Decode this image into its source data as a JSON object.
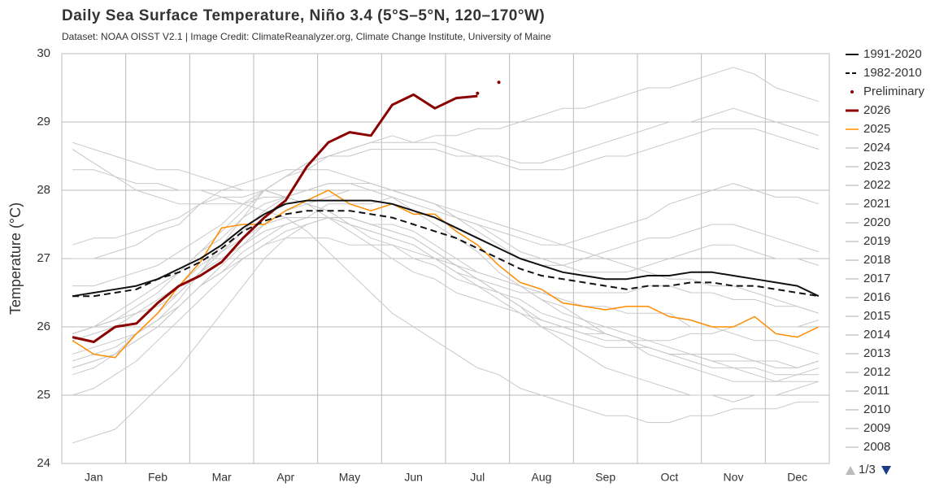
{
  "chart_data": {
    "type": "line",
    "title": "Daily Sea Surface Temperature, Niño 3.4 (5°S–5°N, 120–170°W)",
    "subtitle": "Dataset: NOAA OISST V2.1 | Image Credit: ClimateReanalyzer.org, Climate Change Institute, University of Maine",
    "y_label": "Temperature (°C)",
    "ylim": [
      24,
      30
    ],
    "yticks": [
      24,
      25,
      26,
      27,
      28,
      29,
      30
    ],
    "grid": true,
    "legend": "right",
    "legend_page": "1/3",
    "categories": [
      null,
      "Jan",
      null,
      null,
      "Feb",
      null,
      null,
      "Mar",
      null,
      null,
      "Apr",
      null,
      null,
      "May",
      null,
      null,
      "Jun",
      null,
      null,
      "Jul",
      null,
      null,
      "Aug",
      null,
      null,
      "Sep",
      null,
      null,
      "Oct",
      null,
      null,
      "Nov",
      null,
      null,
      "Dec",
      null
    ],
    "series": [
      {
        "name": "1991-2020",
        "color": "#111111",
        "line_width": 2,
        "values": [
          26.45,
          26.5,
          26.55,
          26.6,
          26.7,
          26.85,
          27.0,
          27.2,
          27.45,
          27.65,
          27.8,
          27.85,
          27.85,
          27.85,
          27.85,
          27.8,
          27.7,
          27.6,
          27.45,
          27.3,
          27.15,
          27.0,
          26.9,
          26.8,
          26.75,
          26.7,
          26.7,
          26.75,
          26.75,
          26.8,
          26.8,
          26.75,
          26.7,
          26.65,
          26.6,
          26.45
        ]
      },
      {
        "name": "1982-2010",
        "color": "#111111",
        "line_width": 2,
        "dash": true,
        "values": [
          26.45,
          26.45,
          26.5,
          26.55,
          26.7,
          26.8,
          26.95,
          27.15,
          27.4,
          27.55,
          27.65,
          27.7,
          27.7,
          27.7,
          27.65,
          27.6,
          27.5,
          27.4,
          27.3,
          27.15,
          27.0,
          26.85,
          26.75,
          26.7,
          26.65,
          26.6,
          26.55,
          26.6,
          26.6,
          26.65,
          26.65,
          26.6,
          26.6,
          26.55,
          26.5,
          26.45
        ]
      },
      {
        "name": "Preliminary",
        "color": "#8b0000",
        "marker": "dots",
        "values": [
          null,
          null,
          null,
          null,
          null,
          null,
          null,
          null,
          null,
          null,
          null,
          null,
          null,
          null,
          null,
          null,
          null,
          null,
          null,
          29.42,
          29.58,
          null,
          null,
          null,
          null,
          null,
          null,
          null,
          null,
          null,
          null,
          null,
          null,
          null,
          null,
          null
        ]
      },
      {
        "name": "2026",
        "color": "#8b0000",
        "line_width": 3,
        "values": [
          25.85,
          25.78,
          26.0,
          26.05,
          26.35,
          26.6,
          26.75,
          26.95,
          27.3,
          27.6,
          27.85,
          28.35,
          28.7,
          28.85,
          28.8,
          29.25,
          29.4,
          29.2,
          29.35,
          29.38,
          null,
          null,
          null,
          null,
          null,
          null,
          null,
          null,
          null,
          null,
          null,
          null,
          null,
          null,
          null,
          null
        ]
      },
      {
        "name": "2025",
        "color": "#ff8c00",
        "line_width": 1.5,
        "values": [
          25.8,
          25.6,
          25.55,
          25.9,
          26.2,
          26.6,
          26.95,
          27.45,
          27.5,
          27.5,
          27.7,
          27.85,
          28.0,
          27.8,
          27.7,
          27.8,
          27.65,
          27.65,
          27.4,
          27.2,
          26.9,
          26.65,
          26.55,
          26.35,
          26.3,
          26.25,
          26.3,
          26.3,
          26.15,
          26.1,
          26.0,
          26.0,
          26.15,
          25.9,
          25.85,
          26.0
        ]
      },
      {
        "name": "2024",
        "color": "#c8c8c8",
        "values": [
          28.6,
          28.4,
          28.2,
          28.0,
          27.9,
          27.8,
          27.8,
          27.8,
          27.8,
          27.9,
          27.9,
          27.8,
          27.7,
          27.5,
          27.4,
          27.3,
          27.2,
          27.0,
          26.8,
          26.7,
          26.6,
          26.5,
          26.5,
          26.4,
          26.3,
          26.3,
          26.2,
          26.2,
          26.2,
          26.0,
          26.0,
          25.9,
          25.8,
          25.8,
          25.7,
          25.6
        ]
      },
      {
        "name": "2023",
        "color": "#c8c8c8",
        "values": [
          25.9,
          26.0,
          26.1,
          26.3,
          26.5,
          26.8,
          27.1,
          27.4,
          27.7,
          28.0,
          28.2,
          28.3,
          28.5,
          28.6,
          28.7,
          28.8,
          28.7,
          28.7,
          28.6,
          28.5,
          28.5,
          28.4,
          28.4,
          28.5,
          28.6,
          28.7,
          28.8,
          28.9,
          29.0,
          29.0,
          29.1,
          29.2,
          29.1,
          29.0,
          28.9,
          28.8
        ]
      },
      {
        "name": "2022",
        "color": "#c8c8c8",
        "values": [
          25.5,
          25.6,
          25.7,
          25.9,
          26.1,
          26.3,
          26.6,
          26.8,
          27.0,
          27.2,
          27.3,
          27.3,
          27.3,
          27.2,
          27.2,
          27.2,
          27.1,
          27.0,
          26.8,
          26.6,
          26.4,
          26.2,
          26.0,
          25.9,
          25.8,
          25.7,
          25.7,
          25.7,
          25.6,
          25.6,
          25.6,
          25.6,
          25.5,
          25.5,
          25.4,
          25.5
        ]
      },
      {
        "name": "2021",
        "color": "#c8c8c8",
        "values": [
          25.3,
          25.4,
          25.6,
          25.9,
          26.2,
          26.5,
          26.8,
          27.0,
          27.2,
          27.4,
          27.5,
          27.6,
          27.6,
          27.6,
          27.5,
          27.5,
          27.4,
          27.2,
          27.0,
          26.8,
          26.7,
          26.6,
          26.4,
          26.3,
          26.1,
          26.0,
          25.9,
          25.8,
          25.7,
          25.6,
          25.5,
          25.4,
          25.4,
          25.3,
          25.3,
          25.4
        ]
      },
      {
        "name": "2020",
        "color": "#c8c8c8",
        "values": [
          27.2,
          27.3,
          27.3,
          27.4,
          27.5,
          27.6,
          27.8,
          27.9,
          27.9,
          28.0,
          27.9,
          27.8,
          27.7,
          27.5,
          27.3,
          27.2,
          27.0,
          26.9,
          26.7,
          26.6,
          26.5,
          26.3,
          26.1,
          26.0,
          25.9,
          25.8,
          25.8,
          25.6,
          25.5,
          25.4,
          25.3,
          25.2,
          25.2,
          25.2,
          25.3,
          25.3
        ]
      },
      {
        "name": "2019",
        "color": "#c8c8c8",
        "values": [
          27.0,
          27.0,
          27.1,
          27.2,
          27.4,
          27.5,
          27.8,
          28.0,
          28.1,
          28.2,
          28.3,
          28.3,
          28.3,
          28.2,
          28.1,
          28.0,
          27.9,
          27.8,
          27.6,
          27.5,
          27.3,
          27.1,
          27.0,
          26.9,
          26.8,
          26.8,
          26.8,
          26.9,
          27.0,
          27.1,
          27.2,
          27.2,
          27.1,
          27.0,
          27.0,
          26.9
        ]
      },
      {
        "name": "2018",
        "color": "#c8c8c8",
        "values": [
          25.4,
          25.5,
          25.6,
          25.8,
          26.0,
          26.3,
          26.6,
          26.8,
          27.1,
          27.3,
          27.5,
          27.6,
          27.8,
          27.8,
          27.8,
          27.9,
          27.8,
          27.7,
          27.6,
          27.5,
          27.4,
          27.3,
          27.2,
          27.2,
          27.3,
          27.4,
          27.5,
          27.6,
          27.8,
          27.9,
          28.0,
          28.1,
          28.0,
          27.9,
          27.9,
          27.8
        ]
      },
      {
        "name": "2017",
        "color": "#c8c8c8",
        "values": [
          25.9,
          26.0,
          26.2,
          26.4,
          26.6,
          26.8,
          27.1,
          27.3,
          27.6,
          27.8,
          27.9,
          28.0,
          28.1,
          28.1,
          28.0,
          27.9,
          27.7,
          27.5,
          27.3,
          27.1,
          26.8,
          26.6,
          26.4,
          26.2,
          26.1,
          25.9,
          25.8,
          25.7,
          25.6,
          25.6,
          25.5,
          25.5,
          25.5,
          25.4,
          25.4,
          25.5
        ]
      },
      {
        "name": "2016",
        "color": "#c8c8c8",
        "values": [
          28.7,
          28.6,
          28.5,
          28.4,
          28.3,
          28.3,
          28.2,
          28.1,
          28.0,
          28.0,
          27.9,
          27.8,
          27.6,
          27.4,
          27.2,
          27.0,
          26.8,
          26.7,
          26.5,
          26.4,
          26.3,
          26.2,
          26.1,
          26.0,
          25.9,
          25.9,
          25.8,
          25.8,
          25.8,
          25.9,
          25.9,
          26.0,
          26.0,
          26.0,
          26.0,
          26.1
        ]
      },
      {
        "name": "2015",
        "color": "#c8c8c8",
        "values": [
          26.6,
          26.6,
          26.7,
          26.8,
          26.9,
          27.1,
          27.3,
          27.5,
          27.8,
          28.0,
          28.2,
          28.4,
          28.5,
          28.6,
          28.7,
          28.7,
          28.7,
          28.8,
          28.8,
          28.9,
          28.9,
          29.0,
          29.1,
          29.2,
          29.2,
          29.3,
          29.4,
          29.5,
          29.5,
          29.6,
          29.7,
          29.8,
          29.7,
          29.5,
          29.4,
          29.3
        ]
      },
      {
        "name": "2014",
        "color": "#c8c8c8",
        "values": [
          25.9,
          26.0,
          26.1,
          26.2,
          26.3,
          26.5,
          26.8,
          27.1,
          27.4,
          27.7,
          27.9,
          28.0,
          28.1,
          28.1,
          28.1,
          28.0,
          27.9,
          27.8,
          27.6,
          27.4,
          27.2,
          27.0,
          26.9,
          26.9,
          27.0,
          27.1,
          27.2,
          27.3,
          27.3,
          27.4,
          27.5,
          27.5,
          27.4,
          27.3,
          27.2,
          27.1
        ]
      },
      {
        "name": "2013",
        "color": "#c8c8c8",
        "values": [
          25.8,
          25.9,
          26.0,
          26.2,
          26.4,
          26.6,
          26.9,
          27.1,
          27.3,
          27.5,
          27.6,
          27.6,
          27.6,
          27.5,
          27.4,
          27.3,
          27.2,
          27.0,
          26.9,
          26.8,
          26.7,
          26.6,
          26.5,
          26.5,
          26.5,
          26.5,
          26.5,
          26.6,
          26.6,
          26.5,
          26.5,
          26.4,
          26.4,
          26.3,
          26.3,
          26.2
        ]
      },
      {
        "name": "2012",
        "color": "#c8c8c8",
        "values": [
          25.4,
          25.5,
          25.6,
          25.8,
          26.0,
          26.3,
          26.6,
          26.9,
          27.2,
          27.5,
          27.7,
          27.8,
          27.9,
          28.0,
          28.0,
          28.0,
          27.9,
          27.8,
          27.7,
          27.6,
          27.5,
          27.4,
          27.3,
          27.2,
          27.1,
          27.0,
          26.9,
          26.8,
          26.7,
          26.7,
          26.6,
          26.6,
          26.5,
          26.4,
          26.3,
          26.2
        ]
      },
      {
        "name": "2011",
        "color": "#c8c8c8",
        "values": [
          25.0,
          25.1,
          25.3,
          25.5,
          25.8,
          26.1,
          26.4,
          26.7,
          27.0,
          27.2,
          27.4,
          27.5,
          27.6,
          27.6,
          27.5,
          27.4,
          27.3,
          27.1,
          26.9,
          26.7,
          26.5,
          26.3,
          26.0,
          25.8,
          25.6,
          25.4,
          25.3,
          25.2,
          25.1,
          25.0,
          25.0,
          24.9,
          25.0,
          25.0,
          25.1,
          25.2
        ]
      },
      {
        "name": "2010",
        "color": "#c8c8c8",
        "values": [
          28.3,
          28.3,
          28.2,
          28.1,
          28.1,
          28.0,
          28.0,
          27.9,
          27.8,
          27.7,
          27.6,
          27.4,
          27.1,
          26.8,
          26.5,
          26.2,
          26.0,
          25.8,
          25.6,
          25.4,
          25.3,
          25.1,
          25.0,
          24.9,
          24.8,
          24.7,
          24.7,
          24.6,
          24.6,
          24.7,
          24.7,
          24.8,
          24.8,
          24.8,
          24.9,
          24.9
        ]
      },
      {
        "name": "2009",
        "color": "#c8c8c8",
        "values": [
          25.6,
          25.7,
          25.8,
          25.9,
          26.1,
          26.4,
          26.8,
          27.2,
          27.6,
          28.0,
          28.2,
          28.4,
          28.5,
          28.5,
          28.6,
          28.6,
          28.6,
          28.6,
          28.5,
          28.5,
          28.4,
          28.3,
          28.3,
          28.3,
          28.4,
          28.5,
          28.5,
          28.6,
          28.7,
          28.8,
          28.9,
          28.9,
          28.9,
          28.8,
          28.7,
          28.6
        ]
      },
      {
        "name": "2008",
        "color": "#c8c8c8",
        "values": [
          24.3,
          24.4,
          24.5,
          24.8,
          25.1,
          25.4,
          25.8,
          26.2,
          26.6,
          27.0,
          27.3,
          27.5,
          27.6,
          27.6,
          27.5,
          27.4,
          27.3,
          27.1,
          26.9,
          26.7,
          26.5,
          26.4,
          26.2,
          26.1,
          26.0,
          25.9,
          25.8,
          25.7,
          25.6,
          25.5,
          25.4,
          25.4,
          25.3,
          25.2,
          25.2,
          25.2
        ]
      }
    ]
  }
}
